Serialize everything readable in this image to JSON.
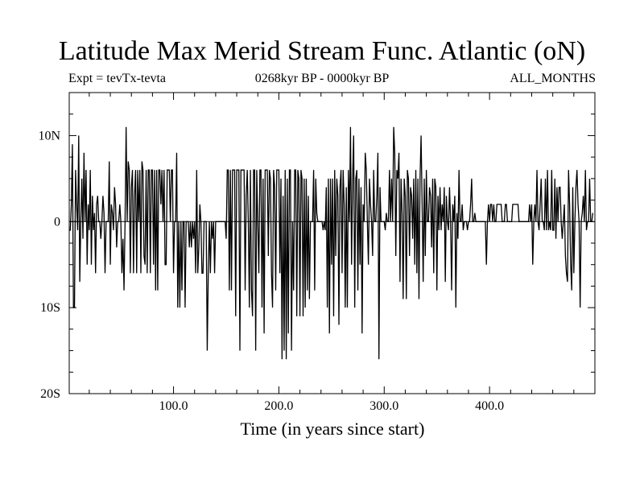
{
  "chart_data": {
    "type": "line",
    "title": "Latitude Max Merid Stream Func. Atlantic (oN)",
    "subtitle_left": "Expt = tevTx-tevta",
    "subtitle_center": "0268kyr BP - 0000kyr BP",
    "subtitle_right": "ALL_MONTHS",
    "xlabel": "Time (in years since start)",
    "ylabel": "",
    "xlim": [
      1,
      500
    ],
    "ylim": [
      -20,
      15
    ],
    "x_ticks": [
      {
        "value": 100,
        "label": "100.0"
      },
      {
        "value": 200,
        "label": "200.0"
      },
      {
        "value": 300,
        "label": "300.0"
      },
      {
        "value": 400,
        "label": "400.0"
      }
    ],
    "y_ticks": [
      {
        "value": 10,
        "label": "10N"
      },
      {
        "value": 0,
        "label": "0"
      },
      {
        "value": -10,
        "label": "10S"
      },
      {
        "value": -20,
        "label": "20S"
      }
    ],
    "grid": false,
    "series": [
      {
        "color": "#000000",
        "x_start": 1,
        "x_step": 1,
        "values": [
          -1,
          -1,
          2,
          9,
          -10,
          -10,
          6,
          2,
          -1,
          10,
          -7,
          0,
          5,
          -2,
          8,
          0,
          6,
          -5,
          2,
          -1,
          6,
          -5,
          3,
          -1,
          1,
          -6,
          2,
          3,
          0,
          0,
          -2,
          0,
          3,
          1,
          -6,
          0,
          0,
          0,
          7,
          -5,
          2,
          1,
          -1,
          4,
          2,
          -3,
          0,
          0,
          2,
          0,
          -6,
          -2,
          -8,
          0,
          11,
          0,
          7,
          6,
          -6,
          4,
          6,
          -6,
          3,
          6,
          -6,
          6,
          0,
          6,
          -6,
          7,
          6,
          -4,
          -5,
          6,
          -6,
          6,
          6,
          -6,
          6,
          6,
          -5,
          6,
          -8,
          6,
          -8,
          6,
          6,
          2,
          6,
          0,
          6,
          -5,
          -5,
          6,
          6,
          6,
          0,
          6,
          6,
          -6,
          0,
          0,
          8,
          -10,
          0,
          -10,
          0,
          -8,
          0,
          0,
          -10,
          0,
          0,
          0,
          -3,
          0,
          -3,
          0,
          -2,
          0,
          -6,
          6,
          -6,
          -3,
          2,
          0,
          -6,
          -6,
          0,
          0,
          0,
          -15,
          -6,
          0,
          -6,
          0,
          -2,
          0,
          -6,
          0,
          0,
          0,
          0,
          0,
          0,
          0,
          0,
          0,
          0,
          -2,
          6,
          6,
          -8,
          6,
          -8,
          6,
          6,
          6,
          -11,
          6,
          6,
          6,
          -15,
          6,
          6,
          6,
          6,
          -8,
          3,
          6,
          0,
          -10,
          6,
          -8,
          -11,
          6,
          6,
          -15,
          6,
          0,
          -6,
          6,
          6,
          -10,
          5,
          -13,
          6,
          6,
          6,
          -4,
          6,
          5,
          -6,
          -10,
          6,
          4,
          -8,
          6,
          6,
          6,
          -6,
          5,
          -16,
          3,
          -15,
          6,
          -16,
          5,
          -13,
          6,
          6,
          -15,
          0,
          -8,
          6,
          6,
          -11,
          6,
          5,
          -11,
          6,
          5,
          -11,
          5,
          -10,
          5,
          -8,
          3,
          -9,
          0,
          0,
          0,
          6,
          -8,
          5,
          1,
          0,
          0,
          0,
          0,
          0,
          -1,
          0,
          -1,
          4,
          -10,
          5,
          -13,
          5,
          -5,
          5,
          -11,
          6,
          -4,
          5,
          3,
          -12,
          4,
          6,
          -6,
          6,
          2,
          -10,
          4,
          -10,
          6,
          0,
          11,
          -5,
          5,
          10,
          -10,
          5,
          6,
          -8,
          5,
          -5,
          4,
          -13,
          2,
          0,
          8,
          6,
          0,
          -5,
          5,
          2,
          0,
          -4,
          6,
          0,
          0,
          3,
          8,
          -16,
          4,
          0,
          0,
          0,
          0,
          -1,
          1,
          0,
          0,
          6,
          0,
          5,
          0,
          11,
          8,
          -4,
          6,
          5,
          8,
          -7,
          5,
          1,
          -9,
          5,
          3,
          -9,
          6,
          5,
          -4,
          4,
          3,
          -2,
          5,
          -5,
          6,
          -6,
          5,
          -9,
          5,
          10,
          2,
          -7,
          5,
          -4,
          6,
          0,
          0,
          4,
          3,
          -3,
          5,
          -6,
          5,
          4,
          -8,
          3,
          -1,
          4,
          -1,
          2,
          0,
          4,
          -7,
          3,
          0,
          -1,
          4,
          0,
          -8,
          2,
          0,
          3,
          -10,
          1,
          -2,
          6,
          0,
          0,
          2,
          -1,
          0,
          0,
          0,
          -1,
          0,
          0,
          2,
          5,
          0,
          0,
          1,
          0,
          0,
          0,
          0,
          0,
          0,
          0,
          0,
          0,
          0,
          -5,
          0,
          2,
          0,
          2,
          2,
          0,
          2,
          0,
          0,
          2,
          2,
          2,
          2,
          2,
          0,
          0,
          0,
          2,
          2,
          0,
          0,
          0,
          0,
          0,
          2,
          2,
          2,
          2,
          2,
          2,
          0,
          0,
          0,
          0,
          0,
          0,
          0,
          0,
          0,
          0,
          2,
          0,
          2,
          -5,
          0,
          2,
          0,
          6,
          0,
          -1,
          2,
          5,
          0,
          0,
          -1,
          5,
          -1,
          6,
          -1,
          0,
          -1,
          6,
          -1,
          -1,
          5,
          -2,
          4,
          0,
          4,
          4,
          0,
          -2,
          0,
          2,
          -4,
          -6,
          -7,
          6,
          2,
          -5,
          -8,
          4,
          -6,
          0,
          4,
          6,
          2,
          0,
          -10,
          0,
          1,
          3,
          0,
          6,
          -1,
          0,
          0,
          5,
          0,
          0,
          1
        ]
      }
    ]
  }
}
